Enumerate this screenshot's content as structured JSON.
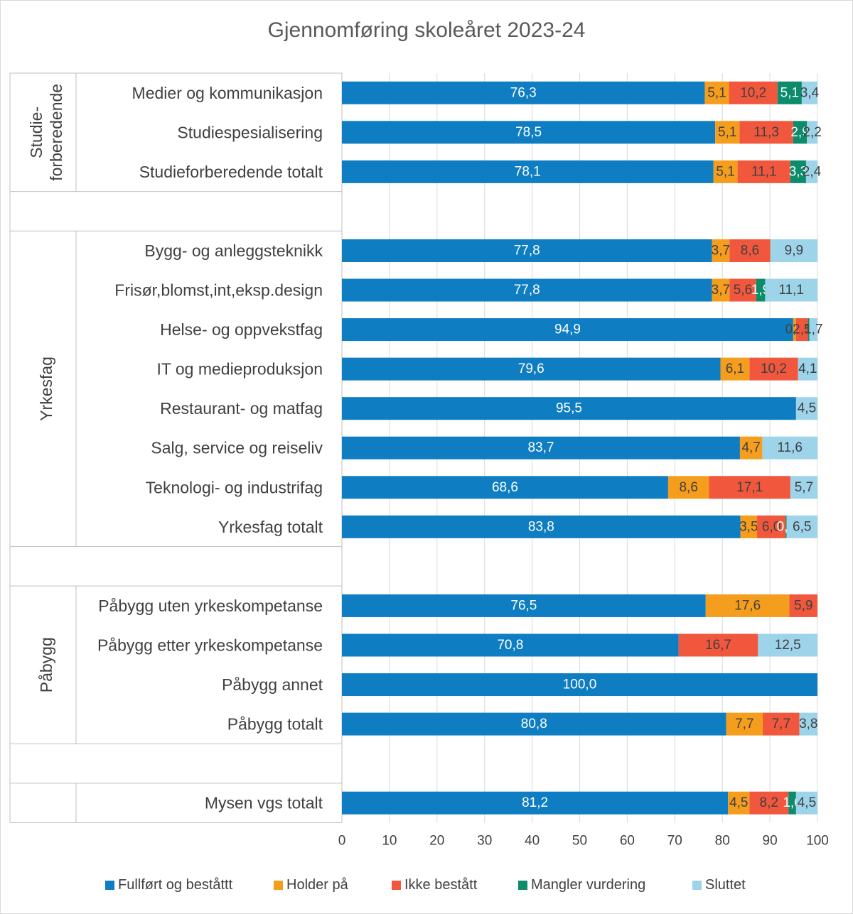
{
  "chart_data": {
    "type": "bar",
    "orientation": "horizontal",
    "stacked": true,
    "title": "Gjennomføring skoleåret 2023-24",
    "xlim": [
      0,
      100
    ],
    "x_ticks": [
      "0",
      "10",
      "20",
      "30",
      "40",
      "50",
      "60",
      "70",
      "80",
      "90",
      "100"
    ],
    "grid": "vertical",
    "legend_position": "bottom",
    "colors": {
      "Fullført og beståttt": "#0f7dc2",
      "Holder på": "#f59d1d",
      "Ikke bestått": "#f0573c",
      "Mangler vurdering": "#0c8c6a",
      "Sluttet": "#9dd4ea"
    },
    "series": [
      {
        "name": "Fullført og beståttt"
      },
      {
        "name": "Holder på"
      },
      {
        "name": "Ikke bestått"
      },
      {
        "name": "Mangler vurdering"
      },
      {
        "name": "Sluttet"
      }
    ],
    "groups": [
      {
        "label": "Studie-\nforberedende",
        "label_lines": [
          "Studie-",
          "forberedende"
        ],
        "rows": [
          {
            "category": "Medier og kommunikasjon",
            "values": [
              76.3,
              5.1,
              10.2,
              5.1,
              3.4
            ],
            "labels": [
              "76,3",
              "5,1",
              "10,2",
              "5,1",
              "3,4"
            ]
          },
          {
            "category": "Studiespesialisering",
            "values": [
              78.5,
              5.1,
              11.3,
              2.9,
              2.2
            ],
            "labels": [
              "78,5",
              "5,1",
              "11,3",
              "2,9",
              "2,2"
            ]
          },
          {
            "category": "Studieforberedende totalt",
            "values": [
              78.1,
              5.1,
              11.1,
              3.3,
              2.4
            ],
            "labels": [
              "78,1",
              "5,1",
              "11,1",
              "3,3",
              "2,4"
            ]
          }
        ]
      },
      {
        "label": "Yrkesfag",
        "label_lines": [
          "Yrkesfag"
        ],
        "rows": [
          {
            "category": "Bygg- og anleggsteknikk",
            "values": [
              77.8,
              3.7,
              8.6,
              0,
              9.9
            ],
            "labels": [
              "77,8",
              "3,7",
              "8,6",
              "",
              "9,9"
            ]
          },
          {
            "category": "Frisør,blomst,int,eksp.design",
            "values": [
              77.8,
              3.7,
              5.6,
              1.9,
              11.1
            ],
            "labels": [
              "77,8",
              "3,7",
              "5,6",
              "1,9",
              "11,1"
            ]
          },
          {
            "category": "Helse- og oppvekstfag",
            "values": [
              94.9,
              0.6,
              2.5,
              0.3,
              1.7
            ],
            "labels": [
              "94,9",
              "0,6",
              "2,5",
              "",
              "1,7"
            ]
          },
          {
            "category": "IT og medieproduksjon",
            "values": [
              79.6,
              6.1,
              10.2,
              0,
              4.1
            ],
            "labels": [
              "79,6",
              "6,1",
              "10,2",
              "",
              "4,1"
            ]
          },
          {
            "category": "Restaurant- og matfag",
            "values": [
              95.5,
              0,
              0,
              0,
              4.5
            ],
            "labels": [
              "95,5",
              "",
              "",
              "",
              "4,5"
            ]
          },
          {
            "category": "Salg, service og reiseliv",
            "values": [
              83.7,
              4.7,
              0,
              0,
              11.6
            ],
            "labels": [
              "83,7",
              "4,7",
              "",
              "",
              "11,6"
            ]
          },
          {
            "category": "Teknologi- og industrifag",
            "values": [
              68.6,
              8.6,
              17.1,
              0,
              5.7
            ],
            "labels": [
              "68,6",
              "8,6",
              "17,1",
              "",
              "5,7"
            ]
          },
          {
            "category": "Yrkesfag totalt",
            "values": [
              83.8,
              3.5,
              6.0,
              0.2,
              6.5
            ],
            "labels": [
              "83,8",
              "3,5",
              "6,0",
              "0,2",
              "6,5"
            ]
          }
        ]
      },
      {
        "label": "Påbygg",
        "label_lines": [
          "Påbygg"
        ],
        "rows": [
          {
            "category": "Påbygg uten yrkeskompetanse",
            "values": [
              76.5,
              17.6,
              5.9,
              0,
              0
            ],
            "labels": [
              "76,5",
              "17,6",
              "5,9",
              "",
              ""
            ]
          },
          {
            "category": "Påbygg etter yrkeskompetanse",
            "values": [
              70.8,
              0,
              16.7,
              0,
              12.5
            ],
            "labels": [
              "70,8",
              "",
              "16,7",
              "",
              "12,5"
            ]
          },
          {
            "category": "Påbygg annet",
            "values": [
              100.0,
              0,
              0,
              0,
              0
            ],
            "labels": [
              "100,0",
              "",
              "",
              "",
              ""
            ]
          },
          {
            "category": "Påbygg totalt",
            "values": [
              80.8,
              7.7,
              7.7,
              0,
              3.8
            ],
            "labels": [
              "80,8",
              "7,7",
              "7,7",
              "",
              "3,8"
            ]
          }
        ]
      },
      {
        "label": "",
        "label_lines": [],
        "rows": [
          {
            "category": "Mysen vgs totalt",
            "values": [
              81.2,
              4.5,
              8.2,
              1.6,
              4.5
            ],
            "labels": [
              "81,2",
              "4,5",
              "8,2",
              "1,6",
              "4,5"
            ]
          }
        ]
      }
    ]
  }
}
